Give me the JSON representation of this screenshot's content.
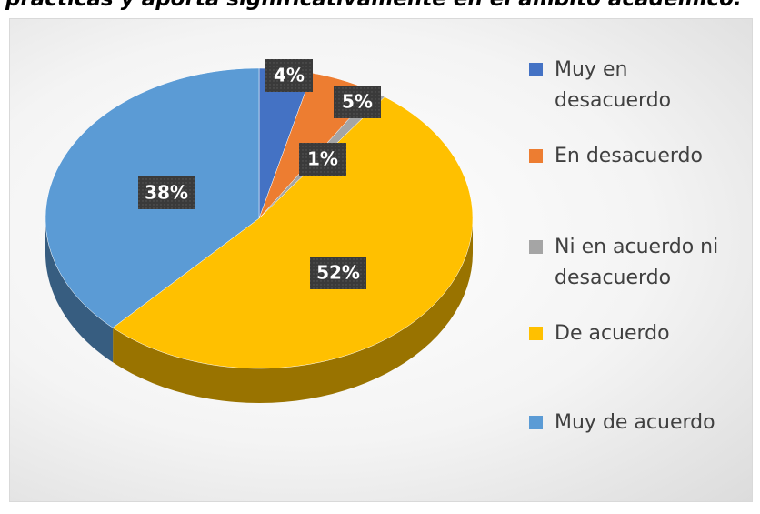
{
  "chart_data": {
    "type": "pie",
    "title": "prácticas y aporta significativamente en el ámbito académico.",
    "categories": [
      "Muy en desacuerdo",
      "En desacuerdo",
      "Ni en acuerdo ni desacuerdo",
      "De acuerdo",
      "Muy de acuerdo"
    ],
    "values": [
      4,
      5,
      1,
      52,
      38
    ],
    "value_labels": [
      "4%",
      "5%",
      "1%",
      "52%",
      "38%"
    ],
    "colors": [
      "#4472c4",
      "#ed7d31",
      "#a5a5a5",
      "#ffc000",
      "#5b9bd5"
    ],
    "legend": "right"
  }
}
